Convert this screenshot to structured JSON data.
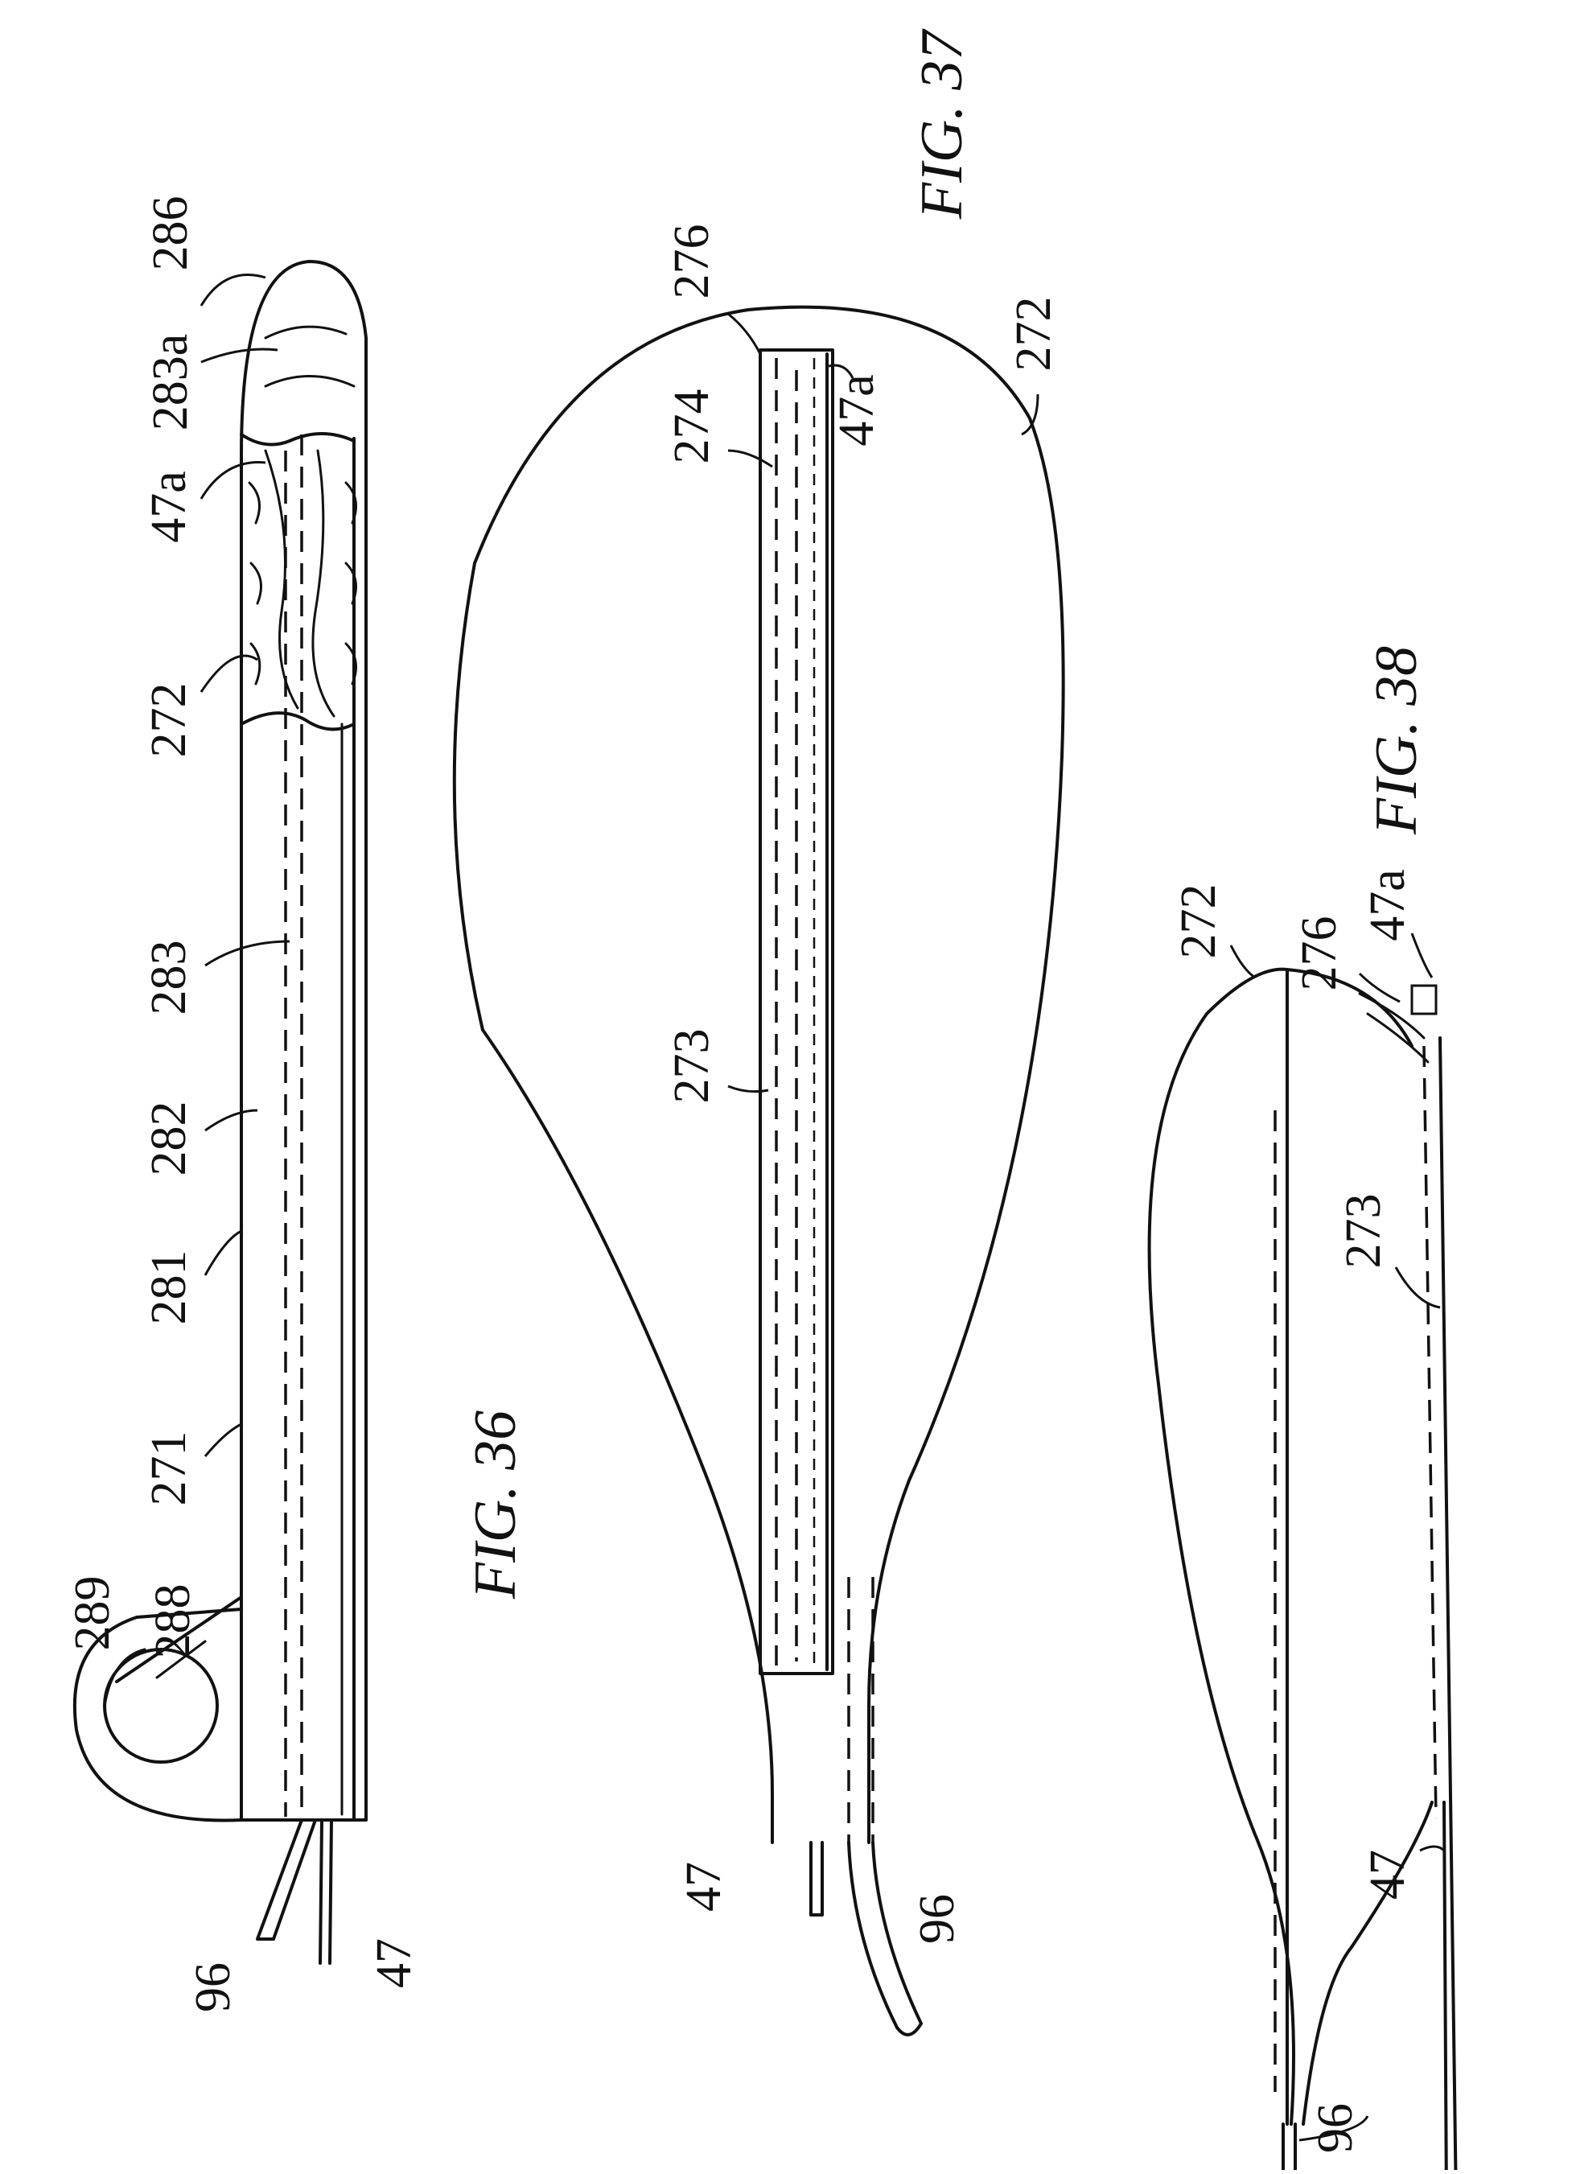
{
  "figures": {
    "fig36": {
      "caption": "FIG. 36",
      "labels": [
        "286",
        "283a",
        "47a",
        "272",
        "283",
        "282",
        "281",
        "271",
        "289",
        "288",
        "96",
        "47"
      ]
    },
    "fig37": {
      "caption": "FIG. 37",
      "labels": [
        "276",
        "274",
        "47a",
        "272",
        "273",
        "47",
        "96"
      ]
    },
    "fig38": {
      "caption": "FIG. 38",
      "labels": [
        "272",
        "276",
        "47a",
        "273",
        "47",
        "96"
      ]
    }
  }
}
